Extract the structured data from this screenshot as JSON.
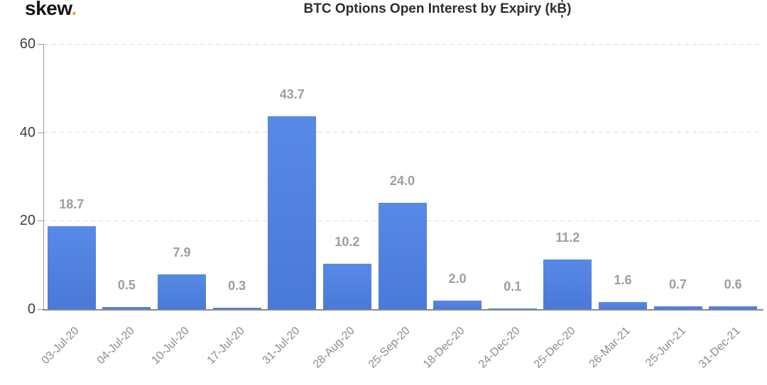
{
  "logo": {
    "text": "skew",
    "dot": "."
  },
  "chart_data": {
    "type": "bar",
    "title": "BTC Options Open Interest by Expiry (k₿)",
    "title_parts": {
      "prefix": "BTC Options Open Interest by Expiry (k",
      "btc_base": "B",
      "suffix": ")"
    },
    "categories": [
      "03-Jul-20",
      "04-Jul-20",
      "10-Jul-20",
      "17-Jul-20",
      "31-Jul-20",
      "28-Aug-20",
      "25-Sep-20",
      "18-Dec-20",
      "24-Dec-20",
      "25-Dec-20",
      "26-Mar-21",
      "25-Jun-21",
      "31-Dec-21"
    ],
    "values": [
      18.7,
      0.5,
      7.9,
      0.3,
      43.7,
      10.2,
      24.0,
      2.0,
      0.1,
      11.2,
      1.6,
      0.7,
      0.6
    ],
    "value_labels": [
      "18.7",
      "0.5",
      "7.9",
      "0.3",
      "43.7",
      "10.2",
      "24.0",
      "2.0",
      "0.1",
      "11.2",
      "1.6",
      "0.7",
      "0.6"
    ],
    "xlabel": "",
    "ylabel": "",
    "yticks": [
      0,
      20,
      40,
      60
    ],
    "ylim": [
      0,
      60
    ],
    "grid": "horizontal-dashed",
    "legend_position": "none",
    "colors": {
      "bar_top": "#5989e7",
      "bar_bottom": "#4a79d8",
      "grid": "#dcdcdc",
      "axis": "#9b9b9b",
      "baseline": "#8a8a8a",
      "value_label": "#9e9e9e",
      "x_label": "#8c8c8c",
      "y_label": "#3e3e3e",
      "title": "#2d2d2d",
      "logo_text": "#141414",
      "logo_dot": "#f0a432",
      "background": "#ffffff"
    }
  }
}
